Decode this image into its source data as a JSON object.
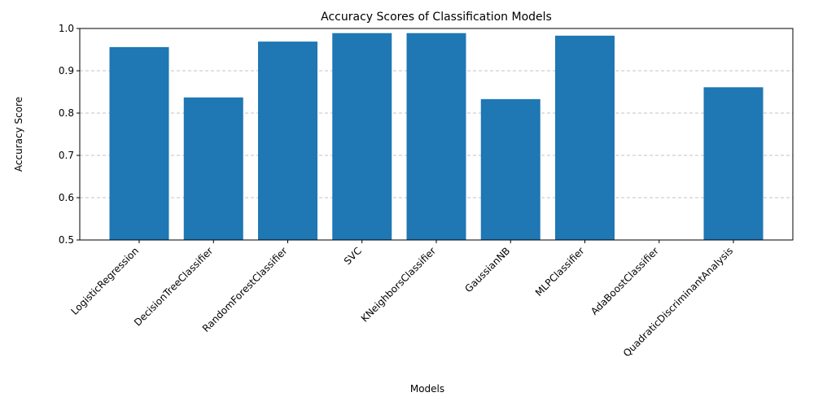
{
  "chart_data": {
    "type": "bar",
    "title": "Accuracy Scores of Classification Models",
    "xlabel": "Models",
    "ylabel": "Accuracy Score",
    "categories": [
      "LogisticRegression",
      "DecisionTreeClassifier",
      "RandomForestClassifier",
      "SVC",
      "KNeighborsClassifier",
      "GaussianNB",
      "MLPClassifier",
      "AdaBoostClassifier",
      "QuadraticDiscriminantAnalysis"
    ],
    "values": [
      0.956,
      0.837,
      0.969,
      0.989,
      0.989,
      0.833,
      0.983,
      0.5,
      0.861
    ],
    "ylim": [
      0.5,
      1.0
    ],
    "yticks": [
      "0.5",
      "0.6",
      "0.7",
      "0.8",
      "0.9",
      "1.0"
    ],
    "grid": "y-dashed",
    "legend": "none",
    "bar_color": "#1f77b4",
    "grid_color": "#b0b0b0"
  }
}
